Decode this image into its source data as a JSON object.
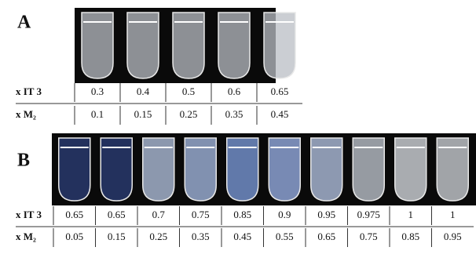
{
  "panels": [
    {
      "label": "A",
      "rows": [
        {
          "label": "x IT 3",
          "values": [
            "0.3",
            "0.4",
            "0.5",
            "0.6",
            "0.65"
          ]
        },
        {
          "label": "x M₂",
          "values": [
            "0.1",
            "0.15",
            "0.25",
            "0.35",
            "0.45"
          ]
        }
      ]
    },
    {
      "label": "B",
      "rows": [
        {
          "label": "x IT 3",
          "values": [
            "0.65",
            "0.65",
            "0.7",
            "0.75",
            "0.85",
            "0.9",
            "0.95",
            "0.975",
            "1",
            "1"
          ]
        },
        {
          "label": "x M₂",
          "values": [
            "0.05",
            "0.15",
            "0.25",
            "0.35",
            "0.45",
            "0.55",
            "0.65",
            "0.75",
            "0.85",
            "0.95"
          ]
        }
      ]
    }
  ]
}
